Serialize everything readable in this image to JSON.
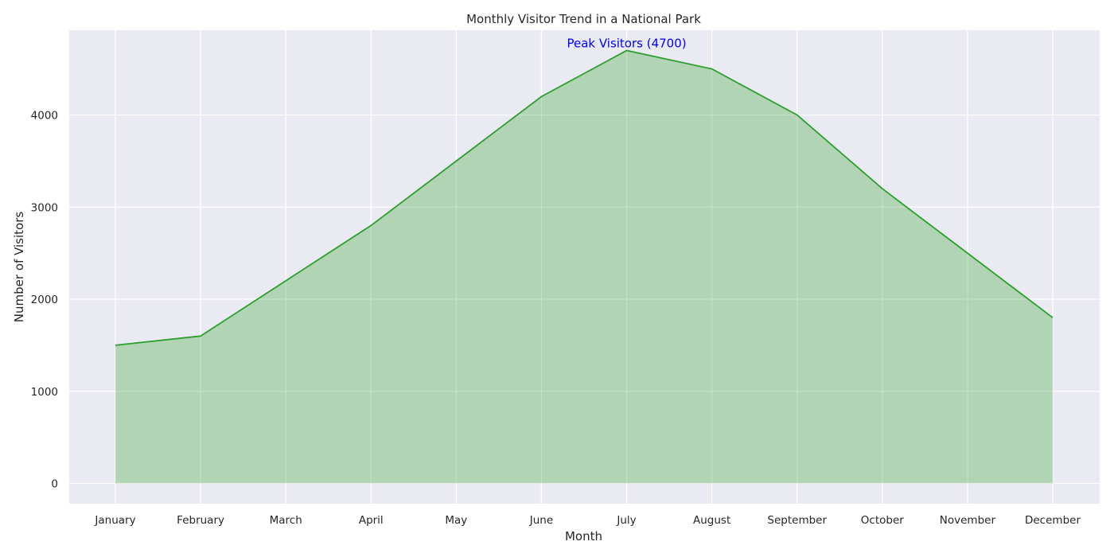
{
  "chart_data": {
    "type": "area",
    "title": "Monthly Visitor Trend in a National Park",
    "xlabel": "Month",
    "ylabel": "Number of Visitors",
    "categories": [
      "January",
      "February",
      "March",
      "April",
      "May",
      "June",
      "July",
      "August",
      "September",
      "October",
      "November",
      "December"
    ],
    "values": [
      1500,
      1600,
      2200,
      2800,
      3500,
      4200,
      4700,
      4500,
      4000,
      3200,
      2500,
      1800
    ],
    "ylim": [
      -220,
      4920
    ],
    "yticks": [
      0,
      1000,
      2000,
      3000,
      4000
    ],
    "grid": true,
    "annotation": {
      "text": "Peak Visitors (4700)",
      "category": "July",
      "value": 4700
    },
    "colors": {
      "plot_background": "#eaeaf2",
      "grid": "#ffffff",
      "line": "#2ca02c",
      "fill": "#b0d4b4",
      "annotation": "#0000ff"
    }
  }
}
